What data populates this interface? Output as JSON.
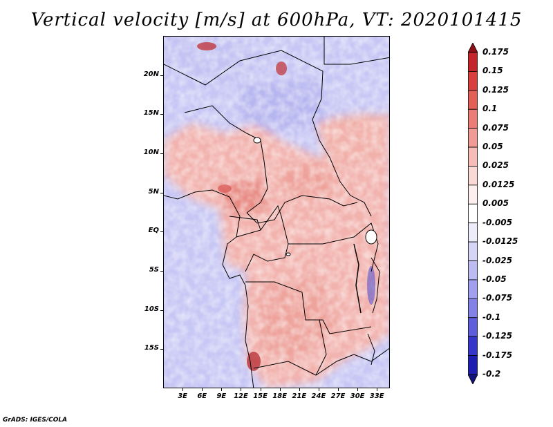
{
  "title": "Vertical velocity [m/s] at 600hPa, VT: 2020101415",
  "credit": "GrADS: IGES/COLA",
  "map": {
    "lat_labels": [
      "20N",
      "15N",
      "10N",
      "5N",
      "EQ",
      "5S",
      "10S",
      "15S"
    ],
    "lat_values": [
      20,
      15,
      10,
      5,
      0,
      -5,
      -10,
      -15
    ],
    "lon_labels": [
      "3E",
      "6E",
      "9E",
      "12E",
      "15E",
      "18E",
      "21E",
      "24E",
      "27E",
      "30E",
      "33E"
    ],
    "lon_values": [
      3,
      6,
      9,
      12,
      15,
      18,
      21,
      24,
      27,
      30,
      33
    ],
    "lon_range": [
      0,
      35
    ],
    "lat_range": [
      -20,
      25
    ]
  },
  "colorbar": {
    "labels": [
      "0.175",
      "0.15",
      "0.125",
      "0.1",
      "0.075",
      "0.05",
      "0.025",
      "0.0125",
      "0.005",
      "-0.005",
      "-0.0125",
      "-0.025",
      "-0.05",
      "-0.075",
      "-0.1",
      "-0.125",
      "-0.175",
      "-0.2"
    ],
    "colors": [
      "#a5161c",
      "#c4252a",
      "#d8403f",
      "#e36059",
      "#ea7e76",
      "#f09c95",
      "#f6bcb6",
      "#fad8d4",
      "#fdefed",
      "#ffffff",
      "#ececfb",
      "#d5d5f7",
      "#bcbcf3",
      "#a0a0ee",
      "#8181e6",
      "#5e5edc",
      "#3636c8",
      "#1d1db0",
      "#141490"
    ],
    "top_arrow_color": "#8b0f14",
    "bottom_arrow_color": "#12127a"
  }
}
